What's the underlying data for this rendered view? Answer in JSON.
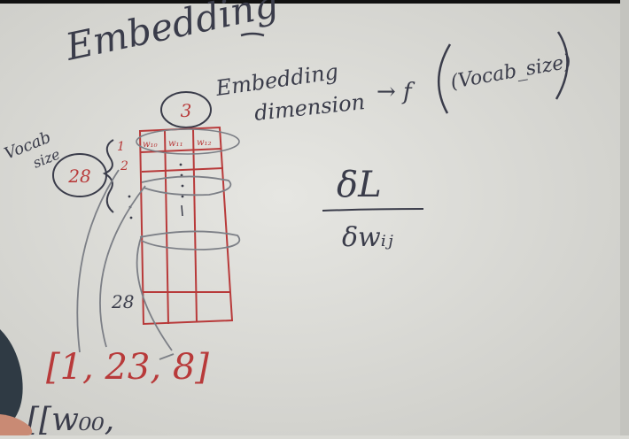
{
  "whiteboard": {
    "title": "Embedding",
    "dimension_label_line1": "Embedding",
    "dimension_label_line2": "dimension",
    "arrow_f": "→ f",
    "vocab_size_expr": "(Vocab_size)",
    "dimension_value": "3",
    "vocab_label_line1": "Vocab",
    "vocab_label_line2": "size",
    "vocab_value": "28",
    "row_index_1": "1",
    "row_index_2": "2",
    "row_index_28": "28",
    "col_header_0": "w₁₀",
    "col_header_1": "w₁₁",
    "col_header_2": "w₁₂",
    "gradient_numerator": "δL",
    "gradient_denominator": "δwᵢⱼ",
    "index_list": "[1, 23, 8]",
    "weights_partial": "[[w₀₀,"
  },
  "colors": {
    "board": "#d9d9d4",
    "ink_dark": "#3a3c4a",
    "ink_red": "#b83a3a",
    "ink_grey": "#7c7f86",
    "frame_black": "#111111",
    "hand_skin": "#c98a74"
  }
}
